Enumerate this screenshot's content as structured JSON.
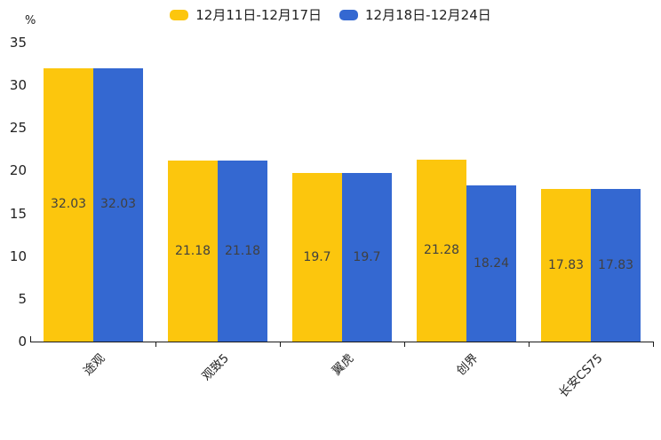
{
  "chart_data": {
    "type": "bar",
    "title": "",
    "categories": [
      "途观",
      "观致5",
      "翼虎",
      "创界",
      "长安CS75"
    ],
    "series": [
      {
        "name": "12月11日-12月17日",
        "color": "#FCC60D",
        "values": [
          32.03,
          21.18,
          19.7,
          21.28,
          17.83
        ]
      },
      {
        "name": "12月18日-12月24日",
        "color": "#3468D1",
        "values": [
          32.03,
          21.18,
          19.7,
          18.24,
          17.83
        ]
      }
    ],
    "xlabel": "",
    "ylabel": "%",
    "ylim": [
      0,
      35
    ],
    "yticks": [
      0,
      5,
      10,
      15,
      20,
      25,
      30,
      35
    ],
    "grid": false,
    "legend_position": "top",
    "value_labels_visible": true
  }
}
